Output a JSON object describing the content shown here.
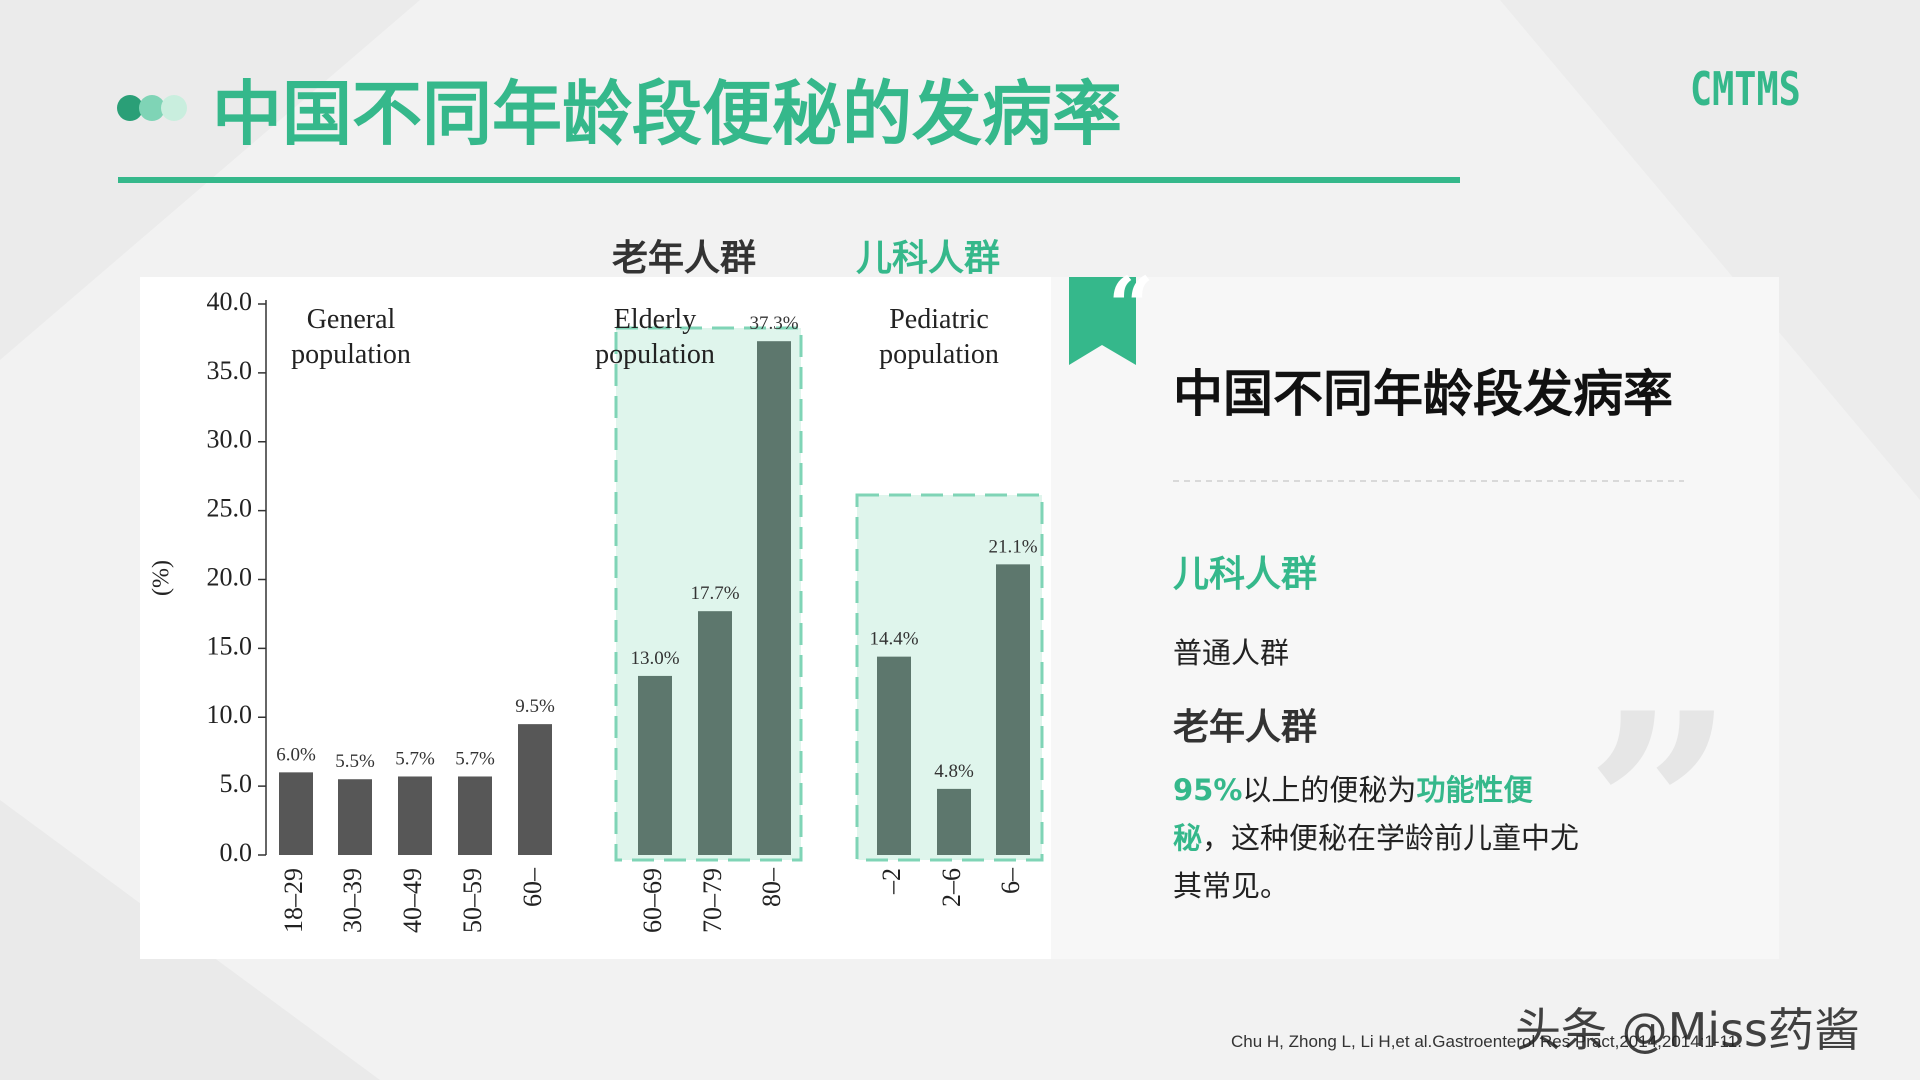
{
  "slide": {
    "title": "中国不同年龄段便秘的发病率",
    "logo": "CMTMS",
    "group_headers": [
      "老年人群",
      "儿科人群"
    ],
    "panel_title": "中国不同年龄段发病率",
    "quote_mark": "“",
    "items": [
      "儿科人群",
      "普通人群",
      "老年人群"
    ],
    "description": [
      {
        "text": "95%",
        "highlight": true
      },
      {
        "text": "以上的便秘为",
        "highlight": false
      },
      {
        "text": "功能性便秘",
        "highlight": true
      },
      {
        "text": "，这种便秘在学龄前儿童中尤其常见。",
        "highlight": false
      }
    ],
    "citation": "Chu H, Zhong L, Li H,et al.Gastroenterol Res Pract,2014,2014:1-11.",
    "watermark": "头条 @Miss药酱"
  },
  "chart_data": {
    "type": "bar",
    "y_label": "(%)",
    "group_labels": [
      "General population",
      "Elderly population",
      "Pediatric population"
    ],
    "categories": [
      "18–29",
      "30–39",
      "40–49",
      "50–59",
      "60–",
      "60–69",
      "70–79",
      "80–",
      "–2",
      "2–6",
      "6–"
    ],
    "values": [
      6.0,
      5.5,
      5.7,
      5.7,
      9.5,
      13.0,
      17.7,
      37.3,
      14.4,
      4.8,
      21.1
    ],
    "value_labels": [
      "6.0%",
      "5.5%",
      "5.7%",
      "5.7%",
      "9.5%",
      "13.0%",
      "17.7%",
      "37.3%",
      "14.4%",
      "4.8%",
      "21.1%"
    ],
    "colors": [
      "#575757",
      "#575757",
      "#575757",
      "#575757",
      "#575757",
      "#5d776d",
      "#5d776d",
      "#5d776d",
      "#5d776d",
      "#5d776d",
      "#5d776d"
    ],
    "ylim": [
      0,
      40
    ],
    "yticks": [
      {
        "value": 0,
        "label": "0.0"
      },
      {
        "value": 5,
        "label": "5.0"
      },
      {
        "value": 10,
        "label": "10.0"
      },
      {
        "value": 15,
        "label": "15.0"
      },
      {
        "value": 20,
        "label": "20.0"
      },
      {
        "value": 25,
        "label": "25.0"
      },
      {
        "value": 30,
        "label": "30.0"
      },
      {
        "value": 35,
        "label": "35.0"
      },
      {
        "value": 40,
        "label": "40.0"
      }
    ]
  }
}
